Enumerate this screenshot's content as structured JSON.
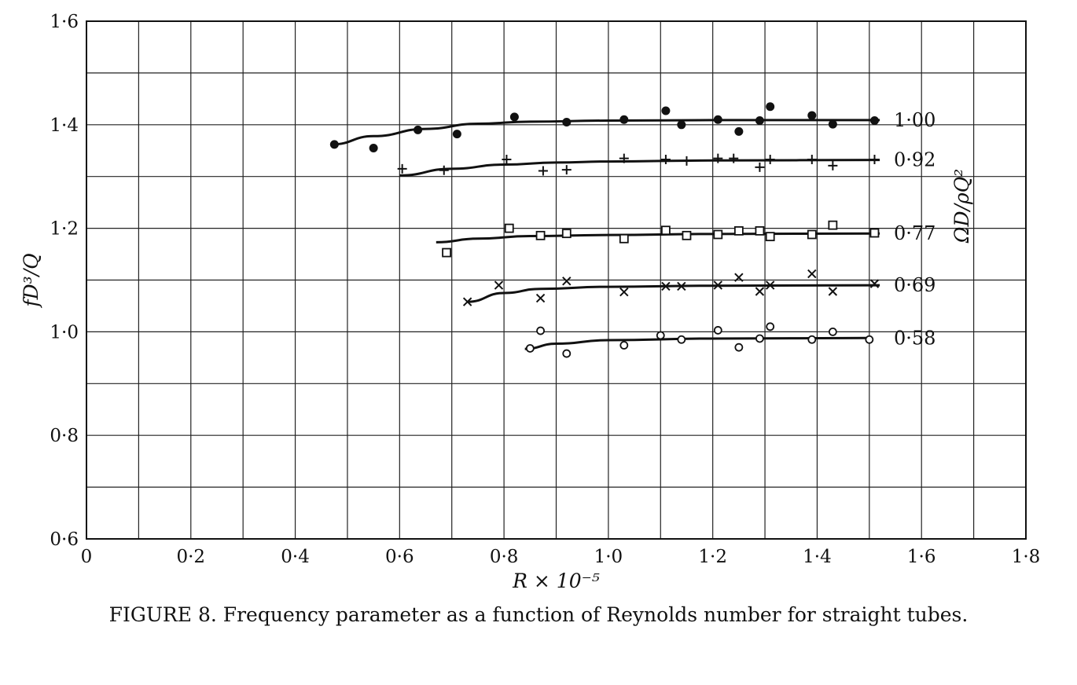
{
  "caption": "FIGURE 8. Frequency parameter as a function of Reynolds number for straight tubes.",
  "chart_data": {
    "type": "scatter",
    "title": "",
    "xlabel": "R × 10⁻⁵",
    "ylabel": "fD³/Q",
    "legend_title": "ΩD/ρQ²",
    "xlim": [
      0,
      1.8
    ],
    "ylim": [
      0.6,
      1.6
    ],
    "x_ticks": [
      0,
      0.2,
      0.4,
      0.6,
      0.8,
      1.0,
      1.2,
      1.4,
      1.6,
      1.8
    ],
    "x_tick_labels": [
      "0",
      "0·2",
      "0·4",
      "0·6",
      "0·8",
      "1·0",
      "1·2",
      "1·4",
      "1·6",
      "1·8"
    ],
    "y_ticks": [
      0.6,
      0.8,
      1.0,
      1.2,
      1.4,
      1.6
    ],
    "y_tick_labels": [
      "0·6",
      "0·8",
      "1·0",
      "1·2",
      "1·4",
      "1·6"
    ],
    "grid_x_step": 0.1,
    "grid_y_step": 0.1,
    "grid": true,
    "series": [
      {
        "name": "1·00",
        "marker": "filled-circle",
        "curve": [
          [
            0.47,
            1.362
          ],
          [
            0.55,
            1.378
          ],
          [
            0.65,
            1.392
          ],
          [
            0.75,
            1.402
          ],
          [
            0.85,
            1.406
          ],
          [
            1.0,
            1.408
          ],
          [
            1.2,
            1.409
          ],
          [
            1.52,
            1.409
          ]
        ],
        "points": [
          [
            0.475,
            1.362
          ],
          [
            0.55,
            1.355
          ],
          [
            0.635,
            1.39
          ],
          [
            0.71,
            1.382
          ],
          [
            0.82,
            1.415
          ],
          [
            0.92,
            1.405
          ],
          [
            1.03,
            1.41
          ],
          [
            1.11,
            1.427
          ],
          [
            1.14,
            1.4
          ],
          [
            1.21,
            1.41
          ],
          [
            1.25,
            1.387
          ],
          [
            1.29,
            1.408
          ],
          [
            1.31,
            1.435
          ],
          [
            1.39,
            1.418
          ],
          [
            1.43,
            1.401
          ],
          [
            1.51,
            1.408
          ]
        ]
      },
      {
        "name": "0·92",
        "marker": "plus",
        "curve": [
          [
            0.6,
            1.302
          ],
          [
            0.7,
            1.315
          ],
          [
            0.8,
            1.323
          ],
          [
            0.9,
            1.327
          ],
          [
            1.0,
            1.329
          ],
          [
            1.2,
            1.331
          ],
          [
            1.52,
            1.332
          ]
        ],
        "points": [
          [
            0.605,
            1.315
          ],
          [
            0.685,
            1.312
          ],
          [
            0.805,
            1.333
          ],
          [
            0.875,
            1.311
          ],
          [
            0.92,
            1.313
          ],
          [
            1.03,
            1.335
          ],
          [
            1.11,
            1.333
          ],
          [
            1.15,
            1.33
          ],
          [
            1.21,
            1.335
          ],
          [
            1.24,
            1.335
          ],
          [
            1.29,
            1.318
          ],
          [
            1.31,
            1.333
          ],
          [
            1.39,
            1.333
          ],
          [
            1.43,
            1.321
          ],
          [
            1.51,
            1.333
          ]
        ]
      },
      {
        "name": "0·77",
        "marker": "square",
        "curve": [
          [
            0.67,
            1.173
          ],
          [
            0.75,
            1.18
          ],
          [
            0.85,
            1.185
          ],
          [
            1.0,
            1.187
          ],
          [
            1.2,
            1.189
          ],
          [
            1.52,
            1.19
          ]
        ],
        "points": [
          [
            0.69,
            1.153
          ],
          [
            0.81,
            1.2
          ],
          [
            0.87,
            1.186
          ],
          [
            0.92,
            1.19
          ],
          [
            1.03,
            1.18
          ],
          [
            1.11,
            1.196
          ],
          [
            1.15,
            1.186
          ],
          [
            1.21,
            1.188
          ],
          [
            1.25,
            1.195
          ],
          [
            1.29,
            1.195
          ],
          [
            1.31,
            1.184
          ],
          [
            1.39,
            1.188
          ],
          [
            1.43,
            1.206
          ],
          [
            1.51,
            1.191
          ]
        ]
      },
      {
        "name": "0·69",
        "marker": "cross",
        "curve": [
          [
            0.73,
            1.058
          ],
          [
            0.8,
            1.075
          ],
          [
            0.87,
            1.083
          ],
          [
            1.0,
            1.087
          ],
          [
            1.2,
            1.089
          ],
          [
            1.52,
            1.09
          ]
        ],
        "points": [
          [
            0.73,
            1.058
          ],
          [
            0.79,
            1.09
          ],
          [
            0.87,
            1.065
          ],
          [
            0.92,
            1.098
          ],
          [
            1.03,
            1.077
          ],
          [
            1.11,
            1.088
          ],
          [
            1.14,
            1.088
          ],
          [
            1.21,
            1.09
          ],
          [
            1.25,
            1.105
          ],
          [
            1.29,
            1.078
          ],
          [
            1.31,
            1.09
          ],
          [
            1.39,
            1.112
          ],
          [
            1.43,
            1.078
          ],
          [
            1.51,
            1.093
          ]
        ]
      },
      {
        "name": "0·58",
        "marker": "open-circle",
        "curve": [
          [
            0.84,
            0.967
          ],
          [
            0.9,
            0.977
          ],
          [
            1.0,
            0.984
          ],
          [
            1.2,
            0.987
          ],
          [
            1.5,
            0.988
          ]
        ],
        "points": [
          [
            0.85,
            0.968
          ],
          [
            0.87,
            1.002
          ],
          [
            0.92,
            0.958
          ],
          [
            1.03,
            0.974
          ],
          [
            1.1,
            0.993
          ],
          [
            1.14,
            0.985
          ],
          [
            1.21,
            1.003
          ],
          [
            1.25,
            0.97
          ],
          [
            1.29,
            0.987
          ],
          [
            1.31,
            1.01
          ],
          [
            1.39,
            0.985
          ],
          [
            1.43,
            1.0
          ],
          [
            1.5,
            0.985
          ]
        ]
      }
    ]
  }
}
